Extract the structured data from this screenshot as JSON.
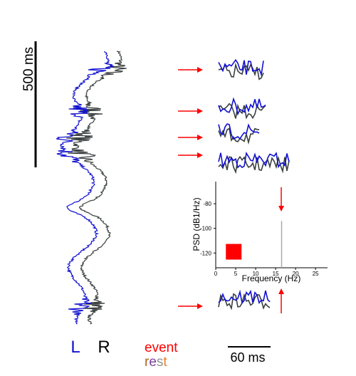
{
  "scale_bar_time": {
    "label": "500 ms"
  },
  "scale_bar_window": {
    "label": "60 ms"
  },
  "channels": {
    "left": {
      "label": "L",
      "color": "#1010d0"
    },
    "right": {
      "label": "R",
      "color": "#3a3f3f"
    }
  },
  "legend": {
    "event": {
      "label": "event",
      "color": "#ff0000"
    },
    "rest": {
      "label": "rest",
      "letter_colors": [
        "#b5651d",
        "#7b3f9e",
        "#909090",
        "#e87d2a"
      ]
    }
  },
  "arrow_color": "#ff0000",
  "snippet_count": 5,
  "chart_data": {
    "type": "scatter",
    "xlabel": "Frequency (Hz)",
    "ylabel": "PSD (dB1/Hz)",
    "xlim": [
      0,
      28
    ],
    "ylim": [
      -132,
      -62
    ],
    "xticks": [
      0,
      5,
      10,
      15,
      20,
      25
    ],
    "yticks": [
      -80,
      -100,
      -120
    ],
    "markers": [
      {
        "x": 4.5,
        "y": -119,
        "shape": "square",
        "color": "#ff0000"
      }
    ],
    "vline": {
      "x": 16.5,
      "ymin": -132,
      "ymax": -94,
      "color": "#aaaaaa"
    },
    "grid": false
  }
}
